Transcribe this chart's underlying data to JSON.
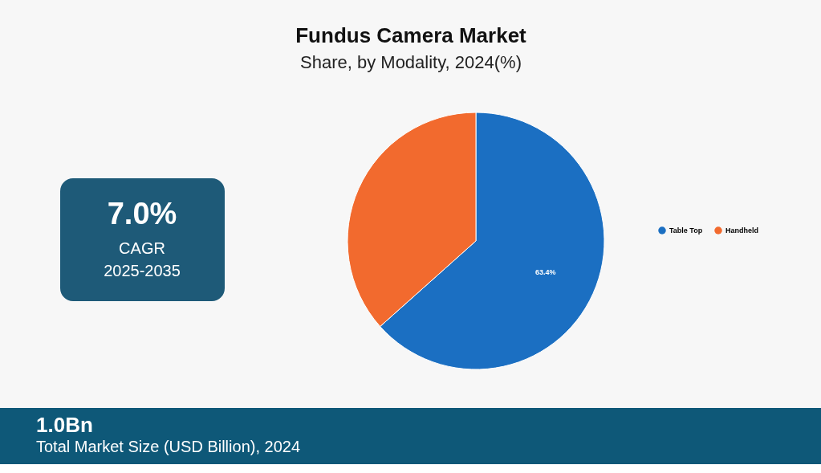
{
  "chart_data": {
    "type": "pie",
    "title": "Fundus Camera Market",
    "subtitle": "Share, by Modality, 2024(%)",
    "categories": [
      "Table Top",
      "Handheld"
    ],
    "values": [
      63.4,
      36.6
    ],
    "colors": [
      "#1b6fc2",
      "#f26a2e"
    ],
    "value_labels": [
      "63.4%",
      null
    ],
    "legend": "right",
    "annotations": [
      "7.0%",
      "CAGR",
      "2025-2035",
      "1.0Bn",
      "Total Market Size (USD Billion), 2024"
    ]
  }
}
